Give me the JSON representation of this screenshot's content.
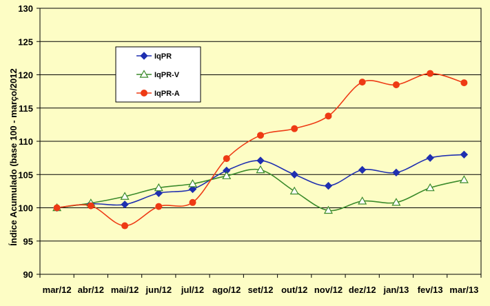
{
  "chart_data": {
    "type": "line",
    "title": "",
    "xlabel": "",
    "ylabel": "Índice Acumulado (base 100 - março/2012",
    "ylim": [
      90,
      130
    ],
    "yticks": [
      90,
      95,
      100,
      105,
      110,
      115,
      120,
      125,
      130
    ],
    "grid": true,
    "legend_position": "upper-left",
    "background": "#fdfdc5",
    "categories": [
      "mar/12",
      "abr/12",
      "mai/12",
      "jun/12",
      "jul/12",
      "ago/12",
      "set/12",
      "out/12",
      "nov/12",
      "dez/12",
      "jan/13",
      "fev/13",
      "mar/13"
    ],
    "series": [
      {
        "name": "IqPR",
        "color": "#1f2fb0",
        "marker": "diamond",
        "values": [
          100.0,
          100.6,
          100.5,
          102.2,
          102.8,
          105.6,
          107.1,
          105.0,
          103.3,
          105.7,
          105.3,
          107.5,
          108.0
        ]
      },
      {
        "name": "IqPR-V",
        "color": "#3a8a2a",
        "marker": "triangle",
        "values": [
          100.0,
          100.7,
          101.7,
          103.0,
          103.6,
          104.8,
          105.7,
          102.5,
          99.6,
          101.0,
          100.8,
          103.0,
          104.2
        ]
      },
      {
        "name": "IqPR-A",
        "color": "#ee3a14",
        "marker": "circle",
        "values": [
          100.0,
          100.3,
          97.3,
          100.2,
          100.8,
          107.4,
          110.9,
          111.9,
          113.8,
          118.9,
          118.5,
          120.2,
          118.8
        ]
      }
    ]
  }
}
